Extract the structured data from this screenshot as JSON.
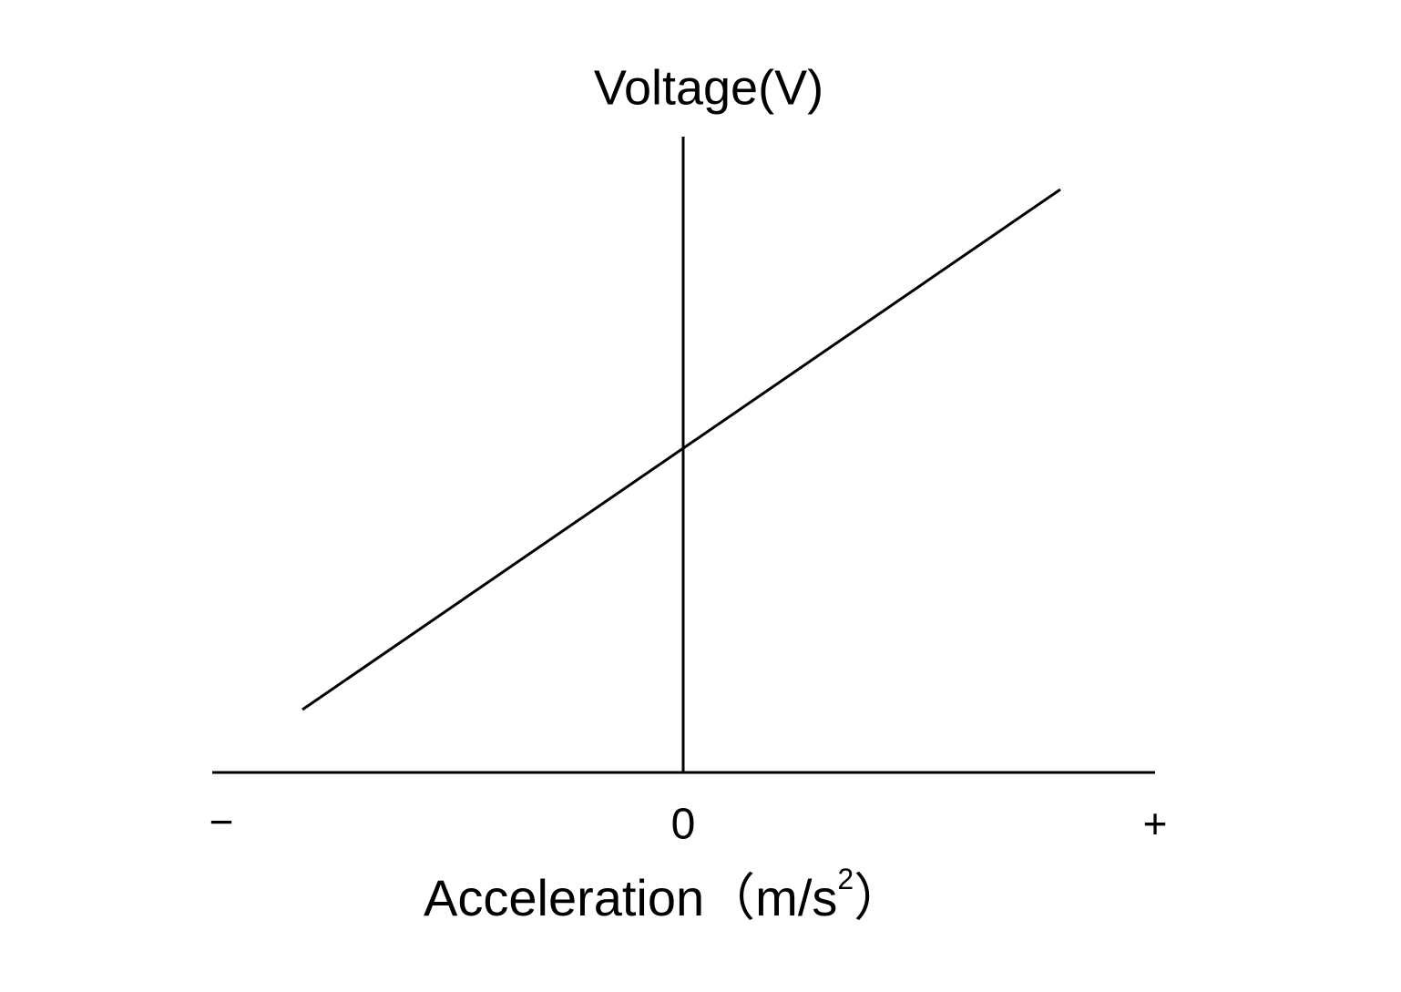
{
  "y_axis": {
    "label": "Voltage(V)"
  },
  "x_axis": {
    "ticks": [
      "−",
      "0",
      "+"
    ],
    "label": {
      "main": "Acceleration（m/s",
      "superscript": "2",
      "end": "）"
    }
  }
}
